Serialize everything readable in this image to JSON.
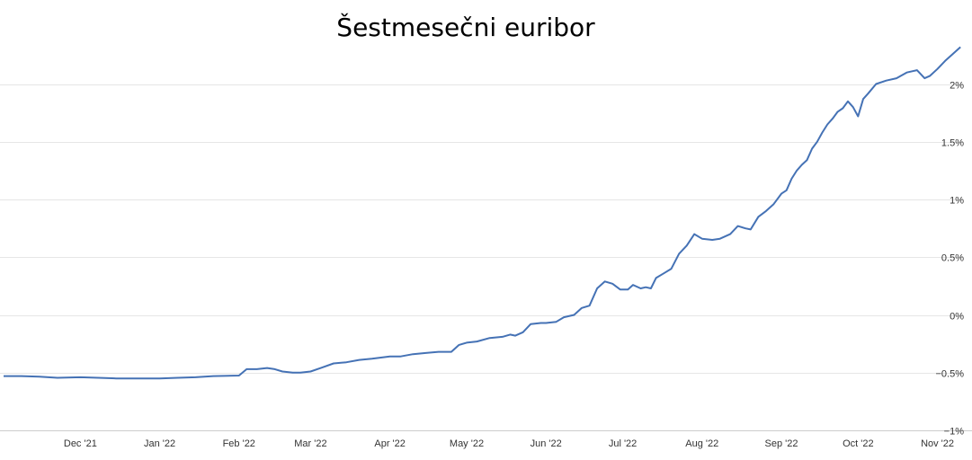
{
  "chart_data": {
    "type": "line",
    "title": "Šestmesečni euribor",
    "xlabel": "",
    "ylabel": "",
    "ylim": [
      -1,
      2.3
    ],
    "y_ticks": [
      -1,
      -0.5,
      0,
      0.5,
      1,
      1.5,
      2
    ],
    "y_tick_labels": [
      "−1%",
      "−0.5%",
      "0%",
      "0.5%",
      "1%",
      "1.5%",
      "2%"
    ],
    "x_ticks": [
      "2021-12-01",
      "2022-01-01",
      "2022-02-01",
      "2022-03-01",
      "2022-04-01",
      "2022-05-01",
      "2022-06-01",
      "2022-07-01",
      "2022-08-01",
      "2022-09-01",
      "2022-10-01",
      "2022-11-01"
    ],
    "x_tick_labels": [
      "Dec '21",
      "Jan '22",
      "Feb '22",
      "Mar '22",
      "Apr '22",
      "May '22",
      "Jun '22",
      "Jul '22",
      "Aug '22",
      "Sep '22",
      "Oct '22",
      "Nov '22"
    ],
    "xlim": [
      "2021-11-01",
      "2022-11-11"
    ],
    "grid": true,
    "legend": "none",
    "color": "#4572b5",
    "series": [
      {
        "x": [
          "2021-11-01",
          "2021-11-08",
          "2021-11-15",
          "2021-11-22",
          "2021-12-01",
          "2021-12-08",
          "2021-12-15",
          "2021-12-22",
          "2022-01-01",
          "2022-01-08",
          "2022-01-15",
          "2022-01-22",
          "2022-02-01",
          "2022-02-04",
          "2022-02-08",
          "2022-02-12",
          "2022-02-15",
          "2022-02-18",
          "2022-02-22",
          "2022-02-25",
          "2022-03-01",
          "2022-03-05",
          "2022-03-10",
          "2022-03-15",
          "2022-03-20",
          "2022-03-25",
          "2022-04-01",
          "2022-04-05",
          "2022-04-10",
          "2022-04-15",
          "2022-04-20",
          "2022-04-25",
          "2022-04-28",
          "2022-05-01",
          "2022-05-05",
          "2022-05-10",
          "2022-05-15",
          "2022-05-18",
          "2022-05-20",
          "2022-05-23",
          "2022-05-26",
          "2022-05-30",
          "2022-06-01",
          "2022-06-05",
          "2022-06-08",
          "2022-06-12",
          "2022-06-15",
          "2022-06-18",
          "2022-06-21",
          "2022-06-24",
          "2022-06-27",
          "2022-06-30",
          "2022-07-01",
          "2022-07-03",
          "2022-07-05",
          "2022-07-08",
          "2022-07-10",
          "2022-07-12",
          "2022-07-14",
          "2022-07-17",
          "2022-07-20",
          "2022-07-23",
          "2022-07-26",
          "2022-07-29",
          "2022-08-01",
          "2022-08-05",
          "2022-08-08",
          "2022-08-12",
          "2022-08-15",
          "2022-08-18",
          "2022-08-20",
          "2022-08-23",
          "2022-08-26",
          "2022-08-29",
          "2022-09-01",
          "2022-09-03",
          "2022-09-05",
          "2022-09-07",
          "2022-09-09",
          "2022-09-11",
          "2022-09-13",
          "2022-09-15",
          "2022-09-17",
          "2022-09-19",
          "2022-09-21",
          "2022-09-23",
          "2022-09-25",
          "2022-09-27",
          "2022-09-29",
          "2022-10-01",
          "2022-10-03",
          "2022-10-05",
          "2022-10-08",
          "2022-10-12",
          "2022-10-16",
          "2022-10-20",
          "2022-10-24",
          "2022-10-27",
          "2022-10-29",
          "2022-11-01",
          "2022-11-04",
          "2022-11-07",
          "2022-11-10"
        ],
        "y": [
          -0.53,
          -0.53,
          -0.535,
          -0.545,
          -0.54,
          -0.545,
          -0.55,
          -0.55,
          -0.55,
          -0.545,
          -0.54,
          -0.53,
          -0.525,
          -0.47,
          -0.47,
          -0.46,
          -0.47,
          -0.49,
          -0.5,
          -0.5,
          -0.49,
          -0.46,
          -0.42,
          -0.41,
          -0.39,
          -0.38,
          -0.36,
          -0.36,
          -0.34,
          -0.33,
          -0.32,
          -0.32,
          -0.26,
          -0.24,
          -0.23,
          -0.2,
          -0.19,
          -0.17,
          -0.18,
          -0.15,
          -0.08,
          -0.07,
          -0.07,
          -0.06,
          -0.02,
          0.0,
          0.06,
          0.08,
          0.23,
          0.29,
          0.27,
          0.22,
          0.22,
          0.22,
          0.26,
          0.23,
          0.24,
          0.23,
          0.32,
          0.36,
          0.4,
          0.53,
          0.6,
          0.7,
          0.66,
          0.65,
          0.66,
          0.7,
          0.77,
          0.75,
          0.74,
          0.85,
          0.9,
          0.96,
          1.05,
          1.08,
          1.18,
          1.25,
          1.3,
          1.34,
          1.44,
          1.5,
          1.58,
          1.65,
          1.7,
          1.76,
          1.79,
          1.85,
          1.8,
          1.72,
          1.87,
          1.92,
          2.0,
          2.03,
          2.05,
          2.1,
          2.12,
          2.05,
          2.07,
          2.13,
          2.2,
          2.26,
          2.32
        ]
      }
    ]
  }
}
